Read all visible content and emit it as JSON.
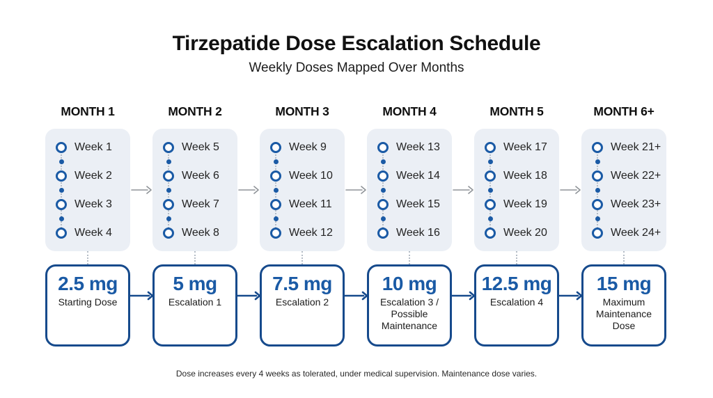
{
  "title": "Tirzepatide Dose Escalation Schedule",
  "subtitle": "Weekly Doses Mapped Over Months",
  "footer": "Dose increases every 4 weeks as tolerated, under medical supervision. Maintenance dose varies.",
  "colors": {
    "card_bg": "#ebeff5",
    "circle_blue": "#1a5aa5",
    "dot_gray": "#b4bcc6",
    "arrow_gray": "#8f9398",
    "box_border": "#164a8c",
    "dose_blue": "#1a5aa5"
  },
  "months": [
    {
      "label": "MONTH 1",
      "weeks": [
        "Week 1",
        "Week 2",
        "Week 3",
        "Week 4"
      ]
    },
    {
      "label": "MONTH 2",
      "weeks": [
        "Week 5",
        "Week 6",
        "Week 7",
        "Week 8"
      ]
    },
    {
      "label": "MONTH 3",
      "weeks": [
        "Week 9",
        "Week 10",
        "Week 11",
        "Week 12"
      ]
    },
    {
      "label": "MONTH 4",
      "weeks": [
        "Week 13",
        "Week 14",
        "Week 15",
        "Week 16"
      ]
    },
    {
      "label": "MONTH 5",
      "weeks": [
        "Week 17",
        "Week 18",
        "Week 19",
        "Week 20"
      ]
    },
    {
      "label": "MONTH 6+",
      "weeks": [
        "Week 21+",
        "Week 22+",
        "Week 23+",
        "Week 24+"
      ]
    }
  ],
  "doses": [
    {
      "value": "2.5 mg",
      "label": "Starting Dose"
    },
    {
      "value": "5 mg",
      "label": "Escalation 1"
    },
    {
      "value": "7.5 mg",
      "label": "Escalation 2"
    },
    {
      "value": "10 mg",
      "label": "Escalation 3 / Possible Maintenance"
    },
    {
      "value": "12.5 mg",
      "label": "Escalation 4"
    },
    {
      "value": "15 mg",
      "label": "Maximum Maintenance Dose"
    }
  ]
}
